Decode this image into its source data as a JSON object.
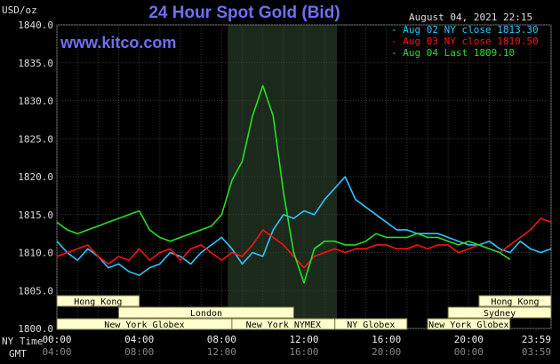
{
  "header": {
    "title": "24 Hour Spot Gold (Bid)",
    "unit": "USD/oz",
    "site": "www.kitco.com",
    "datetime": "August 04, 2021 22:15"
  },
  "colors": {
    "background": "#000000",
    "grid": "#3a3a3a",
    "shade": "#1c2a1c",
    "series_cyan": "#2bc6ff",
    "series_red": "#ff1010",
    "series_green": "#22e022",
    "session_fill": "#ffffcc",
    "session_border": "#7a7a50",
    "session_text": "#000000"
  },
  "axis_rows": {
    "ny_time_label": "NY Time",
    "gmt_label": "GMT"
  },
  "chart_data": {
    "type": "line",
    "title": "24 Hour Spot Gold (Bid)",
    "ylabel": "USD/oz",
    "ylim": [
      1800,
      1840
    ],
    "xlim": [
      0,
      24
    ],
    "yticks": [
      "1800.0",
      "1805.0",
      "1810.0",
      "1815.0",
      "1820.0",
      "1825.0",
      "1830.0",
      "1835.0",
      "1840.0"
    ],
    "xticks_ny": [
      "00:00",
      "04:00",
      "08:00",
      "12:00",
      "16:00",
      "20:00",
      "23:59"
    ],
    "xticks_gmt": [
      "04:00",
      "08:00",
      "12:00",
      "16:00",
      "20:00",
      "00:00",
      "03:59"
    ],
    "grid": true,
    "legend_position": "top-right",
    "shaded_hours": [
      8.3,
      13.6
    ],
    "series": [
      {
        "name": "Aug 02 NY close 1813.30",
        "color": "#2bc6ff",
        "x": [
          0,
          0.5,
          1,
          1.5,
          2,
          2.5,
          3,
          3.5,
          4,
          4.5,
          5,
          5.5,
          6,
          6.5,
          7,
          7.5,
          8,
          8.5,
          9,
          9.5,
          10,
          10.5,
          11,
          11.5,
          12,
          12.5,
          13,
          13.5,
          14,
          14.5,
          15,
          15.5,
          16,
          16.5,
          17,
          17.5,
          18,
          18.5,
          19,
          19.5,
          20,
          20.5,
          21,
          21.5,
          22,
          22.5,
          23,
          23.5,
          24
        ],
        "y": [
          1811.5,
          1810,
          1809,
          1810.5,
          1809.5,
          1808,
          1808.5,
          1807.5,
          1807,
          1808,
          1808.5,
          1810,
          1809.5,
          1808.5,
          1810,
          1811,
          1812,
          1810.5,
          1808.5,
          1810,
          1809.5,
          1813,
          1815,
          1814.5,
          1815.5,
          1815,
          1817,
          1818.5,
          1820,
          1817,
          1816,
          1815,
          1814,
          1813,
          1813,
          1812.5,
          1812.5,
          1812.5,
          1812,
          1811.5,
          1811,
          1811,
          1811.5,
          1810.5,
          1810,
          1811.5,
          1810.5,
          1810,
          1810.5
        ]
      },
      {
        "name": "Aug 03 NY close 1810.50",
        "color": "#ff1010",
        "x": [
          0,
          0.5,
          1,
          1.5,
          2,
          2.5,
          3,
          3.5,
          4,
          4.5,
          5,
          5.5,
          6,
          6.5,
          7,
          7.5,
          8,
          8.5,
          9,
          9.5,
          10,
          10.5,
          11,
          11.5,
          12,
          12.5,
          13,
          13.5,
          14,
          14.5,
          15,
          15.5,
          16,
          16.5,
          17,
          17.5,
          18,
          18.5,
          19,
          19.5,
          20,
          20.5,
          21,
          21.5,
          22,
          22.5,
          23,
          23.5,
          24
        ],
        "y": [
          1809.5,
          1810,
          1810.5,
          1811,
          1809.5,
          1808.5,
          1809.5,
          1809,
          1810.5,
          1809,
          1810,
          1810.5,
          1809,
          1810.5,
          1811,
          1810,
          1809,
          1810,
          1809.5,
          1811,
          1813,
          1812,
          1811,
          1809.5,
          1808,
          1809.5,
          1810,
          1810.5,
          1810,
          1810.5,
          1810.5,
          1811,
          1811,
          1810.5,
          1810.5,
          1811,
          1810.5,
          1811,
          1811,
          1810,
          1810.5,
          1811,
          1810.5,
          1810,
          1811,
          1812,
          1813,
          1814.5,
          1814
        ]
      },
      {
        "name": "Aug 04 Last 1809.10",
        "color": "#22e022",
        "x": [
          0,
          0.5,
          1,
          1.5,
          2,
          2.5,
          3,
          3.5,
          4,
          4.5,
          5,
          5.5,
          6,
          6.5,
          7,
          7.5,
          8,
          8.5,
          9,
          9.5,
          10,
          10.5,
          11,
          11.5,
          12,
          12.5,
          13,
          13.5,
          14,
          14.5,
          15,
          15.5,
          16,
          16.5,
          17,
          17.5,
          18,
          18.5,
          19,
          19.5,
          20,
          20.5,
          21,
          21.5,
          22
        ],
        "y": [
          1814,
          1813,
          1812.5,
          1813,
          1813.5,
          1814,
          1814.5,
          1815,
          1815.5,
          1813,
          1812,
          1811.5,
          1812,
          1812.5,
          1813,
          1813.5,
          1815,
          1819.5,
          1822,
          1828,
          1832,
          1828,
          1818,
          1810,
          1806,
          1810.5,
          1811.5,
          1811.5,
          1811,
          1811,
          1811.5,
          1812.5,
          1812,
          1812,
          1812,
          1812.5,
          1812,
          1812,
          1811.5,
          1811,
          1811.5,
          1811,
          1810.5,
          1810,
          1809.1
        ]
      }
    ],
    "sessions": [
      {
        "label": "Hong Kong",
        "start": 0,
        "end": 4,
        "row": 0
      },
      {
        "label": "London",
        "start": 3,
        "end": 11.5,
        "row": 1
      },
      {
        "label": "New York Globex",
        "start": 0,
        "end": 8.5,
        "row": 2
      },
      {
        "label": "New York NYMEX",
        "start": 8.5,
        "end": 13.5,
        "row": 2
      },
      {
        "label": "NY Globex",
        "start": 13.5,
        "end": 17,
        "row": 2
      },
      {
        "label": "Hong Kong",
        "start": 20.5,
        "end": 24,
        "row": 0
      },
      {
        "label": "Sydney",
        "start": 19,
        "end": 24,
        "row": 1
      },
      {
        "label": "New York Globex",
        "start": 18,
        "end": 22,
        "row": 2
      }
    ]
  }
}
